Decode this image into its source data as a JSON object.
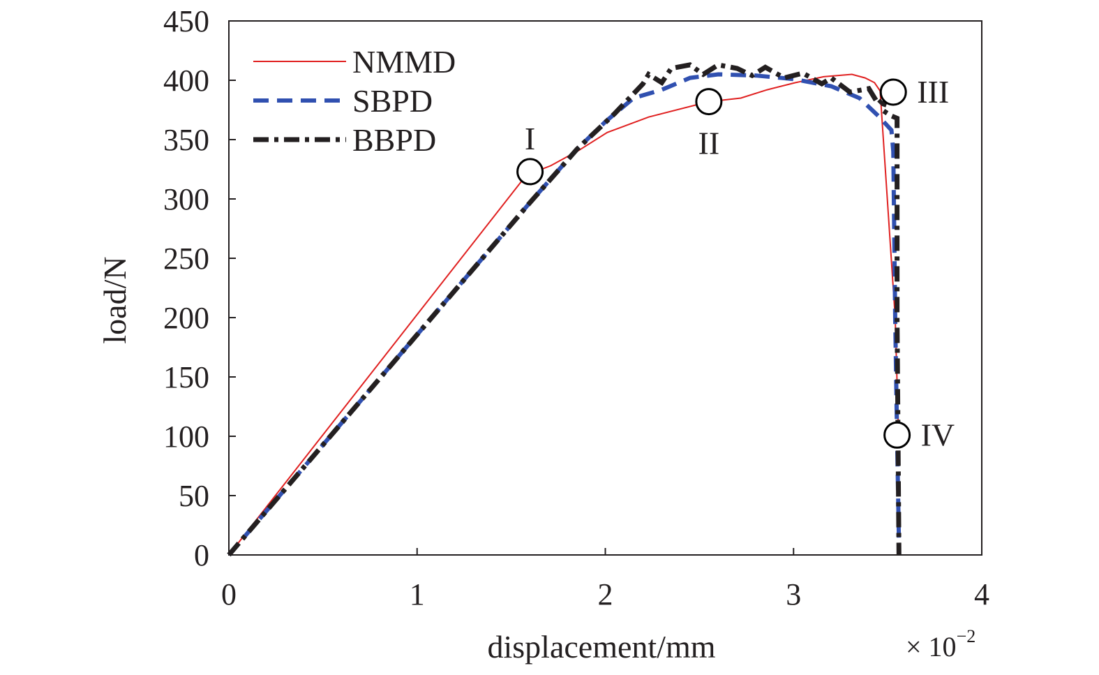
{
  "chart_data": {
    "type": "line",
    "xlabel": "displacement/mm",
    "x_multiplier": "× 10",
    "x_multiplier_exp": "−2",
    "ylabel": "load/N",
    "xlim": [
      0,
      4
    ],
    "ylim": [
      0,
      450
    ],
    "xticks": [
      0,
      1,
      2,
      3,
      4
    ],
    "yticks": [
      0,
      50,
      100,
      150,
      200,
      250,
      300,
      350,
      400,
      450
    ],
    "grid": false,
    "legend_position": "top-left",
    "series": [
      {
        "name": "NMMD",
        "color": "#e02020",
        "style": "solid",
        "x": [
          0,
          1.58,
          1.71,
          1.86,
          2.01,
          2.23,
          2.55,
          2.72,
          2.86,
          3.01,
          3.16,
          3.31,
          3.38,
          3.43,
          3.46,
          3.54,
          3.56
        ],
        "y": [
          0,
          320,
          328,
          341,
          356,
          369,
          382,
          385,
          392,
          398,
          403,
          405,
          402,
          398,
          391,
          200,
          90
        ]
      },
      {
        "name": "SBPD",
        "color": "#3050b0",
        "style": "dashed",
        "x": [
          0,
          1.6,
          1.85,
          2.0,
          2.15,
          2.3,
          2.45,
          2.6,
          2.8,
          3.0,
          3.2,
          3.35,
          3.45,
          3.52,
          3.53,
          3.54,
          3.55,
          3.56
        ],
        "y": [
          0,
          297,
          342,
          365,
          385,
          392,
          402,
          405,
          404,
          401,
          395,
          385,
          370,
          358,
          340,
          200,
          100,
          10
        ]
      },
      {
        "name": "BBPD",
        "color": "#231f20",
        "style": "dashdot",
        "x": [
          0,
          1.6,
          1.85,
          2.05,
          2.2,
          2.23,
          2.3,
          2.35,
          2.45,
          2.52,
          2.6,
          2.7,
          2.78,
          2.85,
          2.95,
          3.05,
          3.15,
          3.2,
          3.3,
          3.4,
          3.45,
          3.5,
          3.47,
          3.52,
          3.55,
          3.55,
          3.56
        ],
        "y": [
          0,
          297,
          342,
          372,
          397,
          405,
          398,
          410,
          413,
          405,
          413,
          410,
          404,
          411,
          402,
          406,
          397,
          402,
          390,
          393,
          380,
          388,
          375,
          370,
          368,
          200,
          0
        ]
      }
    ],
    "annotations": [
      {
        "label": "I",
        "x": 1.6,
        "y": 323,
        "label_pos": "above"
      },
      {
        "label": "II",
        "x": 2.55,
        "y": 382,
        "label_pos": "below"
      },
      {
        "label": "III",
        "x": 3.53,
        "y": 390,
        "label_pos": "right"
      },
      {
        "label": "IV",
        "x": 3.55,
        "y": 101,
        "label_pos": "right"
      }
    ]
  }
}
